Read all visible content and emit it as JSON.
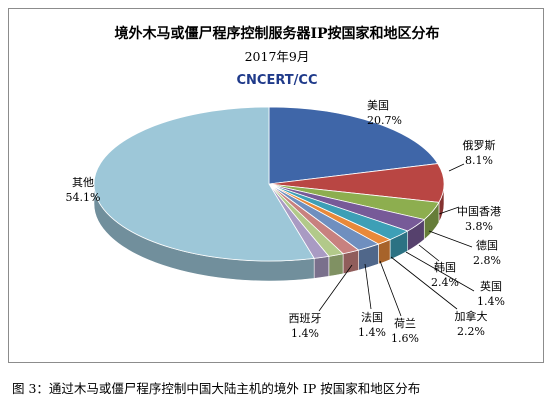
{
  "chart_data": {
    "type": "pie",
    "title": "境外木马或僵尸程序控制服务器IP按国家和地区分布",
    "subtitle": "2017年9月",
    "source_logo_text": "CNCERT/CC",
    "slices": [
      {
        "label": "美国",
        "value": 20.7,
        "value_text": "20.7%",
        "color": "#3f66a8"
      },
      {
        "label": "俄罗斯",
        "value": 8.1,
        "value_text": "8.1%",
        "color": "#b94643"
      },
      {
        "label": "中国香港",
        "value": 3.8,
        "value_text": "3.8%",
        "color": "#8dae4f"
      },
      {
        "label": "德国",
        "value": 2.8,
        "value_text": "2.8%",
        "color": "#775a98"
      },
      {
        "label": "韩国",
        "value": 2.4,
        "value_text": "2.4%",
        "color": "#3d9fb6"
      },
      {
        "label": "英国",
        "value": 1.4,
        "value_text": "1.4%",
        "color": "#e8893a"
      },
      {
        "label": "加拿大",
        "value": 2.2,
        "value_text": "2.2%",
        "color": "#6f8fbf"
      },
      {
        "label": "荷兰",
        "value": 1.6,
        "value_text": "1.6%",
        "color": "#c8817f"
      },
      {
        "label": "法国",
        "value": 1.4,
        "value_text": "1.4%",
        "color": "#b2c98a"
      },
      {
        "label": "西班牙",
        "value": 1.4,
        "value_text": "1.4%",
        "color": "#a99bc3"
      },
      {
        "label": "其他",
        "value": 54.1,
        "value_text": "54.1%",
        "color": "#9dc7d8"
      }
    ],
    "legend": "none"
  },
  "caption": "图 3：通过木马或僵尸程序控制中国大陆主机的境外 IP 按国家和地区分布"
}
